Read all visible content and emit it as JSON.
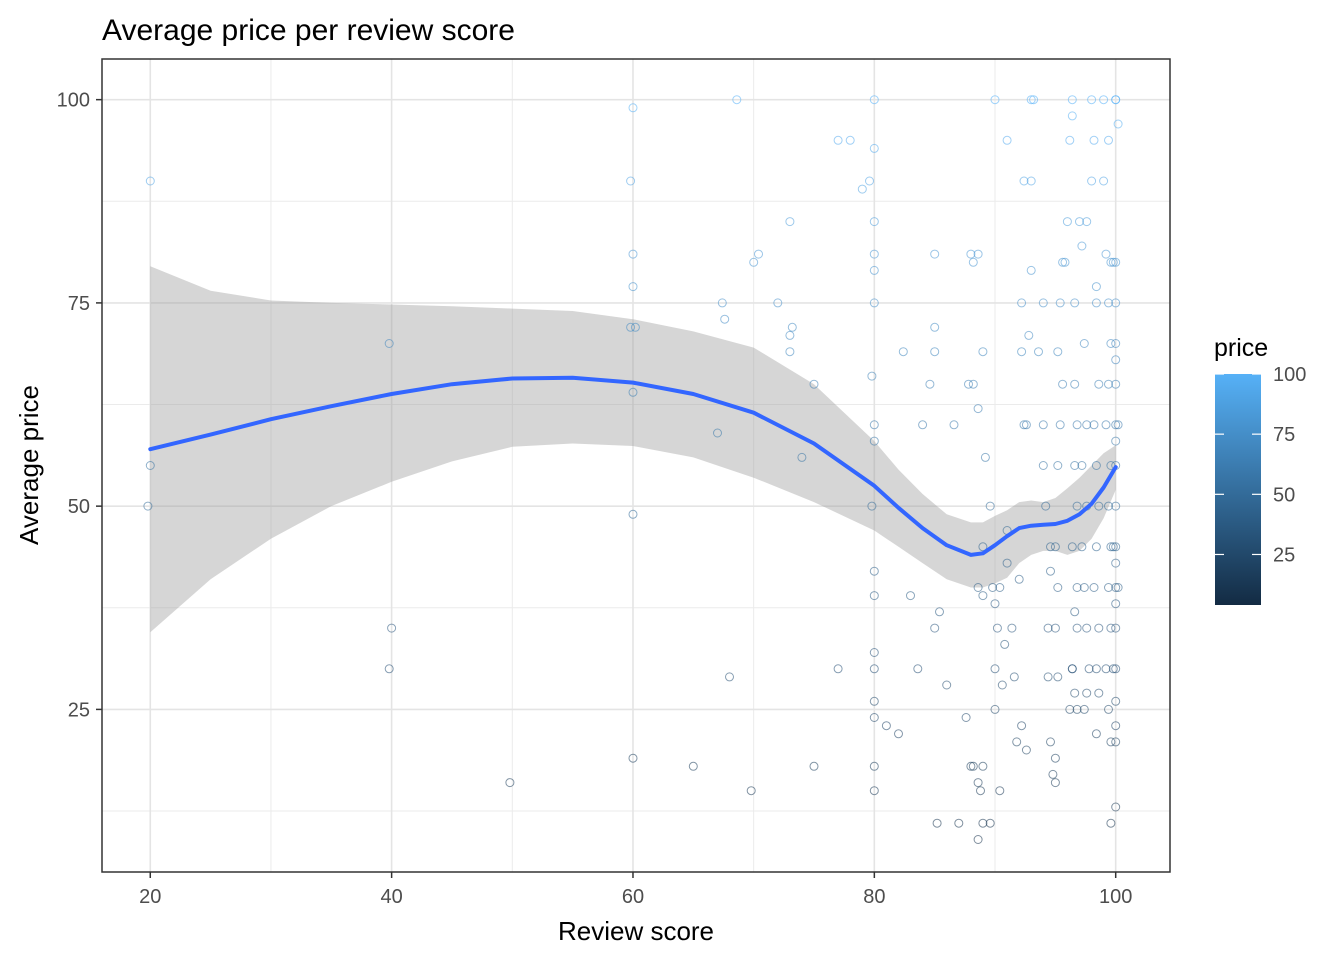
{
  "chart_data": {
    "type": "scatter",
    "title": "Average price per review score",
    "xlabel": "Review score",
    "ylabel": "Average price",
    "xlim": [
      16,
      104.5
    ],
    "ylim": [
      5,
      105
    ],
    "x_ticks": [
      20,
      40,
      60,
      80,
      100
    ],
    "y_ticks": [
      25,
      50,
      75,
      100
    ],
    "grid": true,
    "legend": {
      "title": "price",
      "position": "right",
      "type": "colorbar",
      "range": [
        4,
        100
      ],
      "breaks": [
        25,
        50,
        75,
        100
      ],
      "low_color": "#132b43",
      "high_color": "#56b1f7"
    },
    "smooth": {
      "color": "#3366ff",
      "band_color": "#999999",
      "x": [
        20,
        25,
        30,
        35,
        40,
        45,
        50,
        55,
        60,
        65,
        70,
        75,
        80,
        82,
        84,
        86,
        88,
        89,
        90,
        91,
        92,
        93,
        94,
        95,
        96,
        97,
        98,
        99,
        100
      ],
      "y": [
        57,
        58.8,
        60.7,
        62.3,
        63.8,
        65,
        65.7,
        65.8,
        65.2,
        63.8,
        61.5,
        57.7,
        52.5,
        49.8,
        47.3,
        45.2,
        44,
        44.2,
        45.2,
        46.3,
        47.3,
        47.6,
        47.7,
        47.8,
        48.2,
        49,
        50.3,
        52.3,
        54.8
      ],
      "lower": [
        34.5,
        41,
        46,
        50,
        53,
        55.5,
        57.3,
        57.7,
        57.4,
        56,
        53.5,
        50.5,
        47,
        45,
        43,
        41,
        40,
        40,
        40.5,
        41.2,
        43,
        44,
        44.5,
        44.5,
        44,
        44.5,
        46,
        48.5,
        52
      ],
      "upper": [
        79.5,
        76.5,
        75.3,
        75,
        74.8,
        74.6,
        74.3,
        74,
        73,
        71.5,
        69.5,
        65,
        58,
        54.5,
        51.5,
        49,
        48,
        48,
        48.8,
        49.5,
        50.5,
        50.7,
        50.5,
        51,
        52.2,
        53.5,
        55,
        56.5,
        57.5
      ]
    },
    "points": [
      [
        20,
        90
      ],
      [
        20,
        55
      ],
      [
        19.8,
        50
      ],
      [
        39.8,
        70
      ],
      [
        40,
        35
      ],
      [
        39.8,
        30
      ],
      [
        49.8,
        16
      ],
      [
        60,
        99
      ],
      [
        59.8,
        90
      ],
      [
        60,
        81
      ],
      [
        60,
        77
      ],
      [
        59.8,
        72
      ],
      [
        60.2,
        72
      ],
      [
        60,
        64
      ],
      [
        60,
        49
      ],
      [
        60,
        19
      ],
      [
        65,
        18
      ],
      [
        67,
        59
      ],
      [
        68,
        29
      ],
      [
        68.6,
        100
      ],
      [
        67.4,
        75
      ],
      [
        67.6,
        73
      ],
      [
        69.8,
        15
      ],
      [
        70,
        80
      ],
      [
        70.4,
        81
      ],
      [
        72,
        75
      ],
      [
        73,
        85
      ],
      [
        73.2,
        72
      ],
      [
        73,
        71
      ],
      [
        73,
        69
      ],
      [
        74,
        56
      ],
      [
        75,
        65
      ],
      [
        75,
        18
      ],
      [
        77,
        95
      ],
      [
        78,
        95
      ],
      [
        77,
        30
      ],
      [
        79,
        89
      ],
      [
        79.6,
        90
      ],
      [
        80,
        100
      ],
      [
        80,
        94
      ],
      [
        80,
        85
      ],
      [
        80,
        81
      ],
      [
        80,
        79
      ],
      [
        80,
        75
      ],
      [
        79.8,
        66
      ],
      [
        80,
        60
      ],
      [
        80,
        58
      ],
      [
        79.8,
        50
      ],
      [
        80,
        42
      ],
      [
        80,
        39
      ],
      [
        80,
        32
      ],
      [
        80,
        30
      ],
      [
        80,
        26
      ],
      [
        80,
        24
      ],
      [
        80,
        18
      ],
      [
        80,
        15
      ],
      [
        81,
        23
      ],
      [
        82,
        22
      ],
      [
        82.4,
        69
      ],
      [
        83,
        39
      ],
      [
        83.6,
        30
      ],
      [
        84,
        60
      ],
      [
        84.6,
        65
      ],
      [
        85,
        72
      ],
      [
        85,
        69
      ],
      [
        85,
        81
      ],
      [
        85.4,
        37
      ],
      [
        85,
        35
      ],
      [
        86,
        28
      ],
      [
        86.6,
        60
      ],
      [
        85.2,
        11
      ],
      [
        87,
        11
      ],
      [
        87.6,
        24
      ],
      [
        88,
        18
      ],
      [
        88.6,
        16
      ],
      [
        88,
        81
      ],
      [
        88.2,
        80
      ],
      [
        88.6,
        81
      ],
      [
        87.8,
        65
      ],
      [
        88.2,
        65
      ],
      [
        88.6,
        62
      ],
      [
        89,
        69
      ],
      [
        89.2,
        56
      ],
      [
        89,
        45
      ],
      [
        89.6,
        50
      ],
      [
        89.8,
        40
      ],
      [
        88.6,
        40
      ],
      [
        89,
        39
      ],
      [
        89.6,
        11
      ],
      [
        89,
        18
      ],
      [
        88.8,
        15
      ],
      [
        88.6,
        9
      ],
      [
        88.2,
        18
      ],
      [
        89,
        11
      ],
      [
        90,
        100
      ],
      [
        91,
        95
      ],
      [
        90.4,
        40
      ],
      [
        90.2,
        35
      ],
      [
        90.8,
        33
      ],
      [
        90,
        30
      ],
      [
        90.6,
        28
      ],
      [
        90,
        25
      ],
      [
        90.4,
        15
      ],
      [
        90,
        38
      ],
      [
        91,
        47
      ],
      [
        91,
        43
      ],
      [
        92,
        41
      ],
      [
        91.4,
        35
      ],
      [
        91.6,
        29
      ],
      [
        91.8,
        21
      ],
      [
        92.2,
        23
      ],
      [
        92.6,
        20
      ],
      [
        92.4,
        60
      ],
      [
        92.6,
        60
      ],
      [
        92.2,
        69
      ],
      [
        92.8,
        71
      ],
      [
        92.2,
        75
      ],
      [
        92.4,
        90
      ],
      [
        93,
        90
      ],
      [
        93,
        100
      ],
      [
        93.2,
        100
      ],
      [
        93,
        79
      ],
      [
        93.6,
        69
      ],
      [
        94,
        75
      ],
      [
        94,
        60
      ],
      [
        94,
        55
      ],
      [
        94.2,
        50
      ],
      [
        94.6,
        45
      ],
      [
        94.6,
        42
      ],
      [
        94.4,
        35
      ],
      [
        94.4,
        29
      ],
      [
        94.6,
        21
      ],
      [
        94.8,
        17
      ],
      [
        95,
        16
      ],
      [
        95,
        19
      ],
      [
        95.2,
        29
      ],
      [
        95,
        35
      ],
      [
        95.2,
        40
      ],
      [
        95,
        45
      ],
      [
        95.2,
        55
      ],
      [
        95.4,
        60
      ],
      [
        95.6,
        65
      ],
      [
        95.2,
        69
      ],
      [
        95.4,
        75
      ],
      [
        95.6,
        80
      ],
      [
        95.8,
        80
      ],
      [
        96,
        85
      ],
      [
        96.2,
        95
      ],
      [
        96.4,
        98
      ],
      [
        96.4,
        100
      ],
      [
        96.6,
        75
      ],
      [
        96.6,
        65
      ],
      [
        96.8,
        60
      ],
      [
        96.6,
        55
      ],
      [
        96.8,
        50
      ],
      [
        96.4,
        45
      ],
      [
        96.8,
        40
      ],
      [
        96.6,
        37
      ],
      [
        96.8,
        35
      ],
      [
        96.4,
        30
      ],
      [
        96.6,
        27
      ],
      [
        96.8,
        25
      ],
      [
        96.2,
        25
      ],
      [
        96.4,
        30
      ],
      [
        97,
        85
      ],
      [
        97.2,
        82
      ],
      [
        97.6,
        85
      ],
      [
        97.4,
        70
      ],
      [
        97.6,
        60
      ],
      [
        97.2,
        55
      ],
      [
        97.6,
        50
      ],
      [
        97.2,
        45
      ],
      [
        97.4,
        40
      ],
      [
        97.6,
        35
      ],
      [
        97.8,
        30
      ],
      [
        97.6,
        27
      ],
      [
        97.4,
        25
      ],
      [
        98,
        100
      ],
      [
        98,
        90
      ],
      [
        98.2,
        95
      ],
      [
        98.4,
        77
      ],
      [
        98.4,
        75
      ],
      [
        98.6,
        65
      ],
      [
        98.2,
        60
      ],
      [
        98.4,
        55
      ],
      [
        98.6,
        50
      ],
      [
        98.4,
        45
      ],
      [
        98.2,
        40
      ],
      [
        98.6,
        35
      ],
      [
        98.4,
        30
      ],
      [
        98.6,
        27
      ],
      [
        98.4,
        22
      ],
      [
        99,
        100
      ],
      [
        99,
        90
      ],
      [
        99.4,
        95
      ],
      [
        99.2,
        81
      ],
      [
        99.6,
        80
      ],
      [
        99.4,
        75
      ],
      [
        99.6,
        70
      ],
      [
        99.4,
        65
      ],
      [
        99.2,
        60
      ],
      [
        99.6,
        55
      ],
      [
        99.4,
        50
      ],
      [
        99.6,
        45
      ],
      [
        99.4,
        40
      ],
      [
        99.6,
        35
      ],
      [
        99.2,
        30
      ],
      [
        99.4,
        25
      ],
      [
        99.6,
        21
      ],
      [
        99.6,
        11
      ],
      [
        100,
        100
      ],
      [
        100.2,
        97
      ],
      [
        100,
        80
      ],
      [
        100,
        75
      ],
      [
        100,
        70
      ],
      [
        100,
        68
      ],
      [
        100,
        65
      ],
      [
        100,
        60
      ],
      [
        100,
        58
      ],
      [
        100,
        55
      ],
      [
        100,
        50
      ],
      [
        100,
        45
      ],
      [
        100,
        43
      ],
      [
        100,
        40
      ],
      [
        100,
        38
      ],
      [
        100,
        35
      ],
      [
        100,
        30
      ],
      [
        100,
        26
      ],
      [
        100,
        23
      ],
      [
        100,
        21
      ],
      [
        100,
        13
      ],
      [
        100,
        100
      ],
      [
        99.8,
        80
      ],
      [
        100.2,
        60
      ],
      [
        99.8,
        45
      ],
      [
        100.2,
        40
      ],
      [
        99.8,
        30
      ]
    ]
  }
}
